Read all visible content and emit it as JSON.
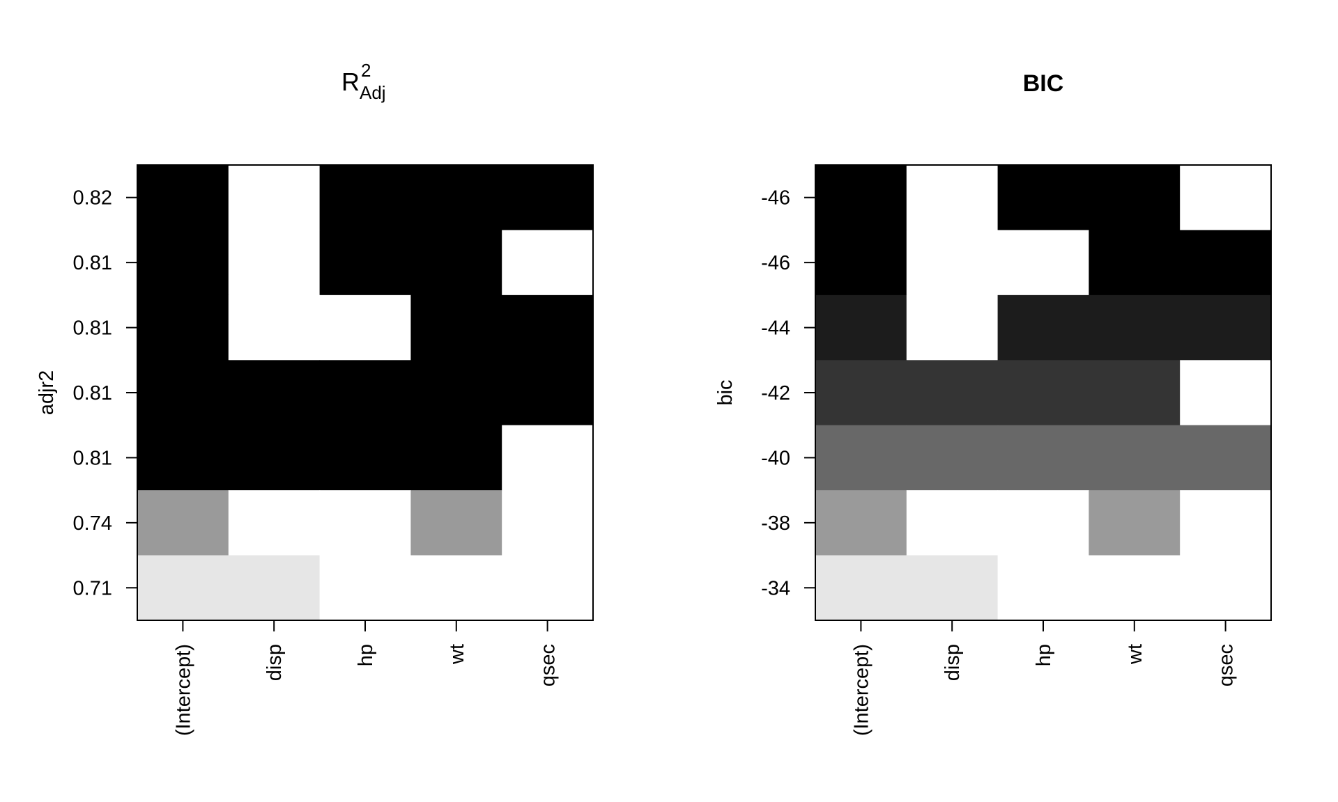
{
  "chart_data": [
    {
      "type": "heatmap",
      "title": "R",
      "title_superscript": "2",
      "title_subscript": "Adj",
      "ylabel": "adjr2",
      "xlabel": "",
      "categories": [
        "(Intercept)",
        "disp",
        "hp",
        "wt",
        "qsec"
      ],
      "row_labels": [
        "0.82",
        "0.81",
        "0.81",
        "0.81",
        "0.81",
        "0.74",
        "0.71"
      ],
      "row_colors": [
        "#000000",
        "#000000",
        "#000000",
        "#000000",
        "#000000",
        "#9a9a9a",
        "#e6e6e6"
      ],
      "cells": [
        [
          1,
          0,
          1,
          1,
          1
        ],
        [
          1,
          0,
          1,
          1,
          0
        ],
        [
          1,
          0,
          0,
          1,
          1
        ],
        [
          1,
          1,
          1,
          1,
          1
        ],
        [
          1,
          1,
          1,
          1,
          0
        ],
        [
          1,
          0,
          0,
          1,
          0
        ],
        [
          1,
          1,
          0,
          0,
          0
        ]
      ]
    },
    {
      "type": "heatmap",
      "title": "BIC",
      "ylabel": "bic",
      "xlabel": "",
      "categories": [
        "(Intercept)",
        "disp",
        "hp",
        "wt",
        "qsec"
      ],
      "row_labels": [
        "-46",
        "-46",
        "-44",
        "-42",
        "-40",
        "-38",
        "-34"
      ],
      "row_colors": [
        "#000000",
        "#000000",
        "#1c1c1c",
        "#343434",
        "#686868",
        "#9a9a9a",
        "#e6e6e6"
      ],
      "cells": [
        [
          1,
          0,
          1,
          1,
          0
        ],
        [
          1,
          0,
          0,
          1,
          1
        ],
        [
          1,
          0,
          1,
          1,
          1
        ],
        [
          1,
          1,
          1,
          1,
          0
        ],
        [
          1,
          1,
          1,
          1,
          1
        ],
        [
          1,
          0,
          0,
          1,
          0
        ],
        [
          1,
          1,
          0,
          0,
          0
        ]
      ]
    }
  ]
}
